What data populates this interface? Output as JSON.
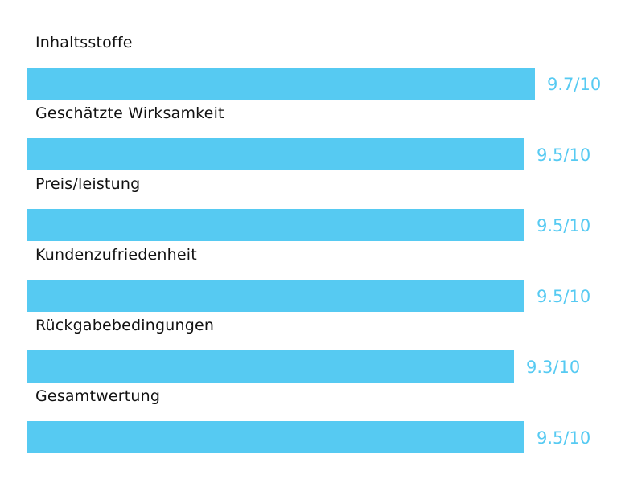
{
  "chart_data": {
    "type": "bar",
    "orientation": "horizontal",
    "categories": [
      "Inhaltsstoffe",
      "Geschätzte Wirksamkeit",
      "Preis/leistung",
      "Kundenzufriedenheit",
      "Rückgabebedingungen",
      "Gesamtwertung"
    ],
    "values": [
      9.7,
      9.5,
      9.5,
      9.5,
      9.3,
      9.5
    ],
    "value_labels": [
      "9.7/10",
      "9.5/10",
      "9.5/10",
      "9.5/10",
      "9.3/10",
      "9.5/10"
    ],
    "max": 10,
    "title": "",
    "xlabel": "",
    "ylabel": "",
    "grid": false,
    "colors": {
      "bar": "#56CAF2",
      "value_text": "#56CAF2",
      "label_text": "#111111"
    }
  }
}
